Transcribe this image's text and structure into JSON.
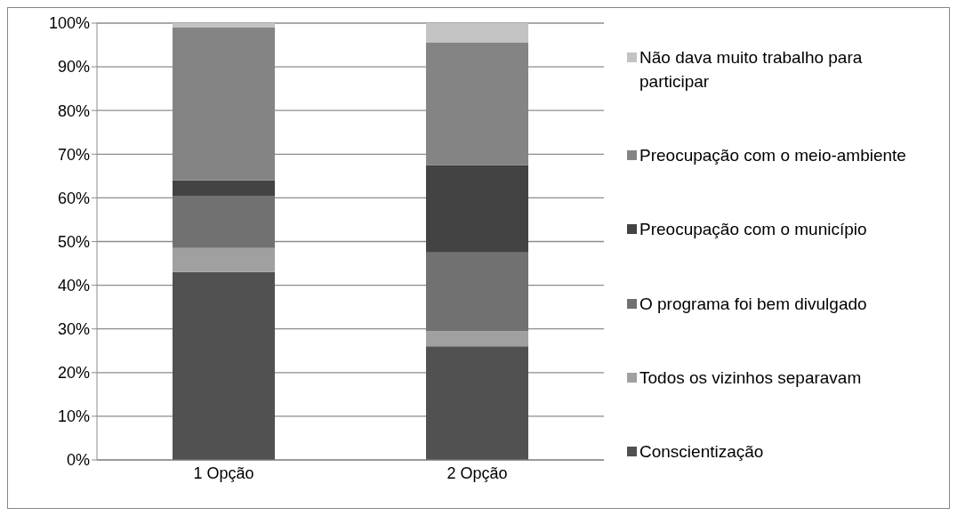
{
  "chart_data": {
    "type": "bar",
    "stacked": true,
    "categories": [
      "1 Opção",
      "2 Opção"
    ],
    "series": [
      {
        "name": "Conscientização",
        "color": "#515151",
        "values": [
          43,
          26
        ]
      },
      {
        "name": "Todos os vizinhos separavam",
        "color": "#a0a0a0",
        "values": [
          5.5,
          3.5
        ]
      },
      {
        "name": "O programa foi bem divulgado",
        "color": "#717171",
        "values": [
          12,
          18
        ]
      },
      {
        "name": "Preocupação com o município",
        "color": "#434343",
        "values": [
          3.5,
          20
        ]
      },
      {
        "name": "Preocupação com o meio-ambiente",
        "color": "#848484",
        "values": [
          35,
          28
        ]
      },
      {
        "name": "Não dava muito trabalho para participar",
        "color": "#c3c3c3",
        "values": [
          1,
          4.5
        ]
      }
    ],
    "ylim": [
      0,
      100
    ],
    "yticks": [
      {
        "value": 0,
        "label": "0%"
      },
      {
        "value": 10,
        "label": "10%"
      },
      {
        "value": 20,
        "label": "20%"
      },
      {
        "value": 30,
        "label": "30%"
      },
      {
        "value": 40,
        "label": "40%"
      },
      {
        "value": 50,
        "label": "50%"
      },
      {
        "value": 60,
        "label": "60%"
      },
      {
        "value": 70,
        "label": "70%"
      },
      {
        "value": 80,
        "label": "80%"
      },
      {
        "value": 90,
        "label": "90%"
      },
      {
        "value": 100,
        "label": "100%"
      }
    ],
    "grid": "y",
    "legend": "right"
  }
}
